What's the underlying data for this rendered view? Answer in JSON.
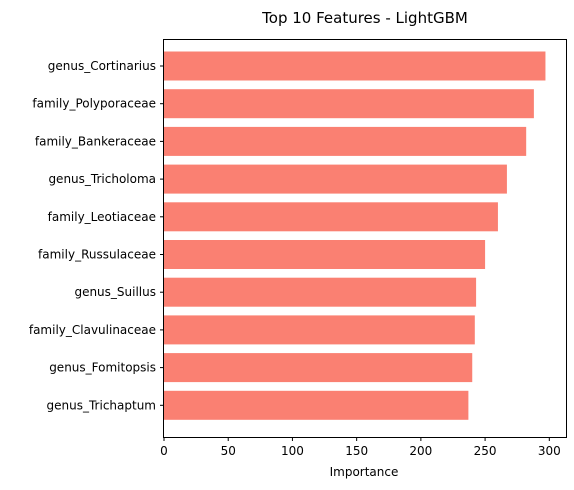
{
  "chart_data": {
    "type": "bar",
    "orientation": "horizontal",
    "title": "Top 10 Features - LightGBM",
    "xlabel": "Importance",
    "ylabel": "",
    "categories": [
      "genus_Cortinarius",
      "family_Polyporaceae",
      "family_Bankeraceae",
      "genus_Tricholoma",
      "family_Leotiaceae",
      "family_Russulaceae",
      "genus_Suillus",
      "family_Clavulinaceae",
      "genus_Fomitopsis",
      "genus_Trichaptum"
    ],
    "values": [
      297,
      288,
      282,
      267,
      260,
      250,
      243,
      242,
      240,
      237
    ],
    "xlim": [
      0,
      313
    ],
    "xticks": [
      0,
      50,
      100,
      150,
      200,
      250,
      300
    ],
    "bar_color": "#fa8072",
    "grid": false,
    "legend": "none"
  }
}
